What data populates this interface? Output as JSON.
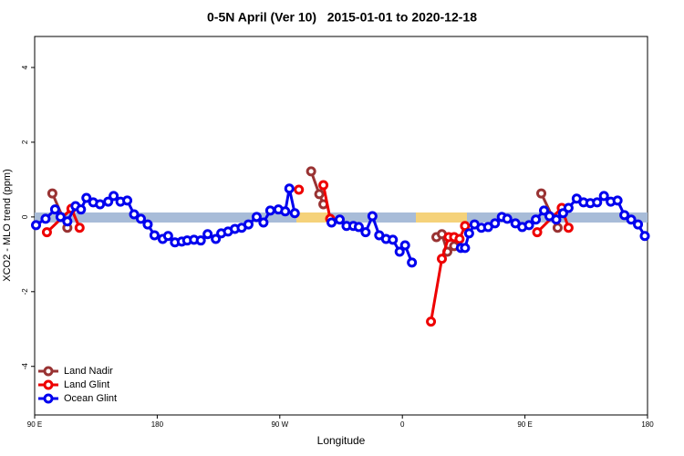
{
  "chart_data": {
    "type": "line",
    "title": "0-5N April (Ver 10)   2015-01-01 to 2020-12-18",
    "x_label": "Longitude",
    "y_label": "XCO2 - MLO trend (ppm)",
    "xlim": [
      90,
      540
    ],
    "ylim": [
      -5.3,
      4.83
    ],
    "xticks": [
      {
        "value": 90,
        "label": "90 E"
      },
      180,
      {
        "value": 270,
        "label": "90 W"
      },
      {
        "value": 360,
        "label": "0"
      },
      {
        "value": 450,
        "label": "90 E"
      },
      {
        "value": 540,
        "label": "180"
      }
    ],
    "yticks": [
      -4,
      -2,
      0,
      2,
      4
    ],
    "legend": "bottom-left",
    "series": [
      {
        "name": "Land Nadir",
        "color": "#993333",
        "x": [
          103,
          114,
          250,
          293,
          299,
          302,
          340,
          385,
          389,
          393,
          398,
          440,
          462,
          474
        ],
        "values": [
          0.63,
          -0.29,
          null,
          1.22,
          0.61,
          0.34,
          null,
          -0.54,
          -0.46,
          -0.93,
          -0.78,
          null,
          0.63,
          -0.29
        ]
      },
      {
        "name": "Land Glint",
        "color": "#ee0000",
        "x": [
          99,
          117,
          123,
          200,
          284,
          290,
          302,
          307,
          340,
          381,
          389,
          394,
          398,
          402,
          406,
          440,
          459,
          477,
          482
        ],
        "values": [
          -0.41,
          0.22,
          -0.29,
          null,
          0.73,
          null,
          0.85,
          -0.05,
          null,
          -2.8,
          -1.12,
          -0.54,
          -0.54,
          -0.59,
          -0.24,
          null,
          -0.41,
          0.24,
          -0.29
        ]
      },
      {
        "name": "Ocean Glint",
        "color": "#0000ee",
        "x": [
          91,
          98,
          105,
          109,
          114,
          120,
          124,
          128,
          133,
          138,
          144,
          148,
          153,
          158,
          163,
          168,
          173,
          178,
          184,
          188,
          193,
          198,
          202,
          207,
          212,
          217,
          223,
          227,
          232,
          237,
          242,
          247,
          253,
          258,
          263,
          269,
          274,
          277,
          281,
          295,
          308,
          314,
          319,
          324,
          328,
          333,
          338,
          343,
          348,
          353,
          358,
          362,
          367,
          385,
          403,
          406,
          409,
          413,
          418,
          423,
          428,
          433,
          437,
          443,
          448,
          453,
          458,
          464,
          468,
          473,
          478,
          482,
          488,
          493,
          498,
          503,
          508,
          513,
          518,
          523,
          528,
          533,
          538
        ],
        "values": [
          -0.22,
          -0.05,
          0.2,
          0,
          -0.12,
          0.29,
          0.2,
          0.51,
          0.39,
          0.34,
          0.41,
          0.56,
          0.41,
          0.44,
          0.07,
          -0.05,
          -0.2,
          -0.49,
          -0.59,
          -0.51,
          -0.68,
          -0.66,
          -0.63,
          -0.61,
          -0.63,
          -0.46,
          -0.59,
          -0.44,
          -0.39,
          -0.32,
          -0.29,
          -0.2,
          0,
          -0.15,
          0.17,
          0.2,
          0.15,
          0.76,
          0.1,
          null,
          -0.15,
          -0.07,
          -0.24,
          -0.24,
          -0.27,
          -0.41,
          0.02,
          -0.49,
          -0.59,
          -0.61,
          -0.93,
          -0.76,
          -1.22,
          null,
          -0.83,
          -0.83,
          -0.44,
          -0.2,
          -0.29,
          -0.27,
          -0.17,
          0,
          -0.05,
          -0.17,
          -0.27,
          -0.22,
          -0.07,
          0.17,
          0.02,
          -0.07,
          0.1,
          0.24,
          0.49,
          0.39,
          0.37,
          0.39,
          0.56,
          0.41,
          0.44,
          0.05,
          -0.07,
          -0.2,
          -0.51
        ]
      }
    ]
  }
}
